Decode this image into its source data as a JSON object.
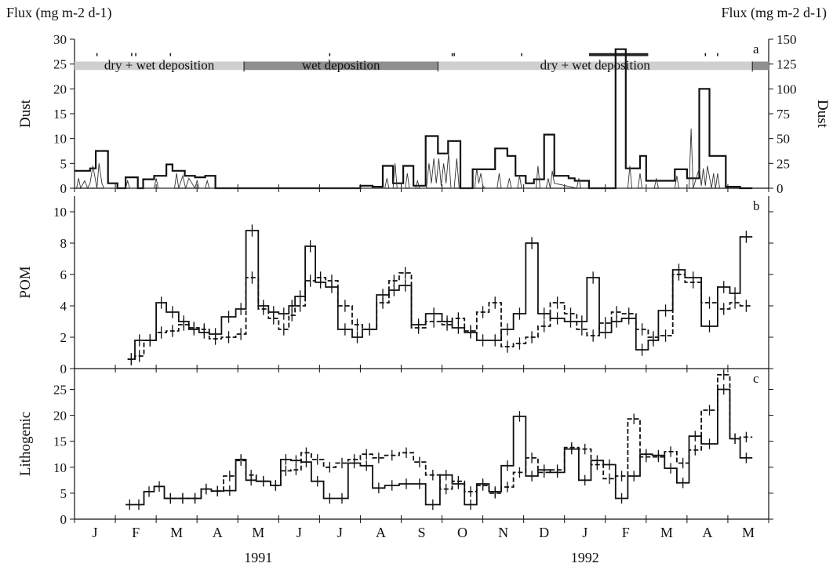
{
  "chart_data": [
    {
      "type": "line",
      "panel": "a",
      "title": "",
      "ylabel": "Dust",
      "ylabel_right": "Dust",
      "top_label_left": "Flux (mg m-2 d-1)",
      "top_label_right": "Flux (mg m-2 d-1)",
      "ylim": [
        0,
        30
      ],
      "yticks": [
        0,
        5,
        10,
        15,
        20,
        25,
        30
      ],
      "ylim_right": [
        0,
        150
      ],
      "yticks_right": [
        0,
        25,
        50,
        75,
        100,
        125,
        150
      ],
      "deposition_bands": [
        {
          "label": "dry + wet deposition",
          "start": 0.0,
          "end": 4.15,
          "shade": "#cfcfcf"
        },
        {
          "label": "wet deposition",
          "start": 4.15,
          "end": 8.9,
          "shade": "#8f8f8f"
        },
        {
          "label": "dry + wet deposition",
          "start": 8.9,
          "end": 16.6,
          "shade": "#cfcfcf"
        },
        {
          "label": "",
          "start": 16.6,
          "end": 17.0,
          "shade": "#8f8f8f"
        }
      ],
      "series": [
        {
          "style": "thick-step",
          "x": [
            0.0,
            0.38,
            0.52,
            0.82,
            1.05,
            1.25,
            1.55,
            1.68,
            1.95,
            2.25,
            2.4,
            2.7,
            2.95,
            3.2,
            3.45,
            3.7,
            3.95,
            4.15,
            7.0,
            7.3,
            7.55,
            7.8,
            8.05,
            8.3,
            8.6,
            8.9,
            9.15,
            9.45,
            9.75,
            10.3,
            10.6,
            10.8,
            11.05,
            11.25,
            11.5,
            11.75,
            12.1,
            12.25,
            12.6,
            12.9,
            13.25,
            13.5,
            13.85,
            14.0,
            14.3,
            14.7,
            15.0,
            15.3,
            15.55,
            15.95,
            16.3
          ],
          "y": [
            3.5,
            4.0,
            7.5,
            1.0,
            0,
            2.2,
            0,
            1.8,
            2.5,
            4.8,
            3.5,
            2.5,
            2.2,
            2.5,
            0,
            0,
            0,
            0,
            0.5,
            0.3,
            4.5,
            1.0,
            4.5,
            0.5,
            10.5,
            7.0,
            9.5,
            0,
            3.8,
            8.0,
            6.5,
            2.5,
            1.0,
            1.8,
            10.8,
            2.5,
            2.0,
            1.5,
            0,
            0,
            28.0,
            4.0,
            6.5,
            1.5,
            1.5,
            3.8,
            2.0,
            20.0,
            6.5,
            0.3,
            0
          ]
        },
        {
          "style": "thin-spiky",
          "x": [
            0.05,
            0.1,
            0.15,
            0.25,
            0.32,
            0.38,
            0.45,
            0.55,
            0.6,
            0.67,
            0.72,
            1.25,
            1.3,
            1.35,
            1.95,
            2.0,
            2.05,
            2.45,
            2.5,
            2.55,
            2.65,
            2.72,
            2.8,
            2.95,
            3.0,
            3.05,
            3.2,
            3.25,
            3.3,
            7.6,
            7.65,
            7.7,
            7.8,
            7.85,
            7.9,
            8.1,
            8.15,
            8.2,
            8.35,
            8.4,
            8.45,
            8.62,
            8.68,
            8.74,
            8.8,
            8.86,
            8.92,
            8.98,
            9.04,
            9.1,
            9.16,
            9.22,
            9.3,
            9.36,
            9.42,
            9.8,
            9.85,
            9.9,
            9.95,
            10.0,
            10.05,
            10.35,
            10.4,
            10.45,
            10.6,
            10.65,
            10.7,
            10.85,
            10.9,
            10.95,
            11.3,
            11.35,
            11.4,
            11.55,
            11.6,
            11.65,
            11.7,
            11.75,
            12.3,
            12.35,
            12.4,
            13.55,
            13.6,
            13.65,
            13.8,
            13.85,
            13.9,
            14.2,
            14.25,
            14.3,
            14.7,
            14.75,
            14.8,
            15.05,
            15.1,
            15.15,
            15.3,
            15.35,
            15.4,
            15.45,
            15.5,
            15.6,
            15.65,
            15.7,
            15.75,
            15.8
          ],
          "y": [
            0,
            2.0,
            0,
            1.5,
            0,
            1.0,
            4.5,
            0,
            5.0,
            1.0,
            0,
            0,
            1.5,
            0,
            0,
            2.0,
            0,
            0,
            3.0,
            0,
            2.5,
            0,
            2.0,
            0,
            1.5,
            0,
            0,
            1.5,
            0,
            0,
            2.0,
            0,
            0,
            5.0,
            0,
            0,
            3.0,
            0,
            0,
            1.5,
            0,
            0,
            5.0,
            1.0,
            6.0,
            1.0,
            6.0,
            0.5,
            5.0,
            1.0,
            7.0,
            0,
            0,
            6.0,
            0,
            0,
            4.0,
            1.0,
            3.0,
            0.5,
            0,
            0,
            3.0,
            0,
            0,
            2.0,
            0,
            0,
            2.5,
            0,
            0,
            4.5,
            0,
            0,
            2.0,
            0,
            3.5,
            1.0,
            0,
            2.0,
            0,
            0,
            4.5,
            0,
            0,
            3.0,
            0,
            0,
            2.0,
            0,
            0,
            2.5,
            0,
            0,
            12.0,
            0,
            4.0,
            0.5,
            4.0,
            0.5,
            4.5,
            0,
            3.0,
            0,
            3.0,
            0
          ]
        }
      ]
    },
    {
      "type": "line",
      "panel": "b",
      "title": "",
      "ylabel": "POM",
      "ylim": [
        0,
        11
      ],
      "yticks": [
        0,
        2,
        4,
        6,
        8,
        10
      ],
      "series": [
        {
          "style": "solid",
          "x": [
            1.3,
            1.48,
            1.7,
            2.0,
            2.25,
            2.55,
            2.8,
            3.05,
            3.3,
            3.6,
            3.95,
            4.2,
            4.5,
            4.75,
            5.0,
            5.25,
            5.4,
            5.65,
            5.9,
            6.15,
            6.45,
            6.8,
            7.05,
            7.4,
            7.7,
            7.95,
            8.25,
            8.6,
            9.0,
            9.25,
            9.55,
            9.85,
            10.15,
            10.45,
            10.75,
            11.05,
            11.35,
            11.65,
            12.0,
            12.3,
            12.55,
            12.85,
            13.15,
            13.4,
            13.75,
            14.05,
            14.3,
            14.65,
            14.95,
            15.35,
            15.75,
            16.05,
            16.3
          ],
          "y": [
            0.6,
            1.8,
            1.8,
            4.2,
            3.6,
            3.0,
            2.5,
            2.3,
            2.2,
            3.3,
            3.8,
            8.8,
            4.0,
            3.6,
            3.5,
            4.0,
            4.6,
            7.8,
            5.5,
            5.2,
            2.5,
            2.0,
            2.5,
            4.7,
            5.0,
            5.3,
            2.8,
            3.5,
            3.0,
            2.6,
            2.3,
            1.8,
            1.8,
            2.5,
            3.5,
            8.0,
            3.5,
            3.2,
            3.0,
            3.0,
            5.8,
            2.3,
            3.0,
            3.2,
            1.2,
            1.8,
            3.7,
            6.3,
            5.8,
            2.7,
            5.2,
            4.8,
            8.4
          ]
        },
        {
          "style": "dashed",
          "x": [
            1.3,
            1.48,
            1.7,
            2.0,
            2.25,
            2.55,
            2.8,
            3.05,
            3.3,
            3.6,
            3.95,
            4.2,
            4.5,
            4.75,
            5.0,
            5.25,
            5.4,
            5.65,
            5.9,
            6.15,
            6.45,
            6.8,
            7.05,
            7.4,
            7.7,
            7.95,
            8.25,
            8.6,
            9.0,
            9.25,
            9.55,
            9.85,
            10.15,
            10.45,
            10.75,
            11.05,
            11.35,
            11.65,
            12.0,
            12.3,
            12.55,
            12.85,
            13.15,
            13.4,
            13.75,
            14.05,
            14.3,
            14.65,
            14.95,
            15.35,
            15.75,
            16.05,
            16.3
          ],
          "y": [
            0.6,
            0.8,
            1.8,
            2.3,
            2.4,
            2.8,
            2.6,
            2.5,
            1.9,
            2.0,
            2.2,
            5.8,
            3.8,
            3.2,
            2.5,
            3.4,
            4.0,
            5.6,
            5.8,
            5.6,
            4.0,
            2.8,
            2.5,
            4.2,
            5.6,
            6.1,
            2.6,
            3.0,
            2.8,
            3.2,
            2.4,
            3.6,
            4.2,
            1.4,
            1.6,
            2.0,
            2.7,
            4.2,
            3.5,
            2.5,
            2.1,
            2.9,
            3.6,
            3.5,
            2.5,
            2.0,
            2.1,
            6.0,
            5.5,
            4.2,
            3.8,
            4.2,
            4.0
          ]
        }
      ]
    },
    {
      "type": "line",
      "panel": "c",
      "title": "",
      "ylabel": "Lithogenic",
      "ylim": [
        0,
        29
      ],
      "yticks": [
        0,
        5,
        10,
        15,
        20,
        25
      ],
      "series": [
        {
          "style": "solid",
          "x": [
            1.25,
            1.45,
            1.7,
            1.95,
            2.2,
            2.5,
            2.8,
            3.1,
            3.35,
            3.65,
            3.95,
            4.2,
            4.45,
            4.8,
            5.05,
            5.3,
            5.55,
            5.8,
            6.1,
            6.4,
            6.7,
            7.0,
            7.3,
            7.6,
            7.95,
            8.3,
            8.6,
            8.95,
            9.25,
            9.55,
            9.85,
            10.15,
            10.45,
            10.75,
            11.05,
            11.35,
            11.65,
            12.0,
            12.35,
            12.65,
            12.95,
            13.25,
            13.55,
            13.85,
            14.15,
            14.45,
            14.75,
            15.05,
            15.35,
            15.75,
            16.05,
            16.3
          ],
          "y": [
            2.8,
            2.8,
            5.3,
            6.3,
            4.0,
            4.0,
            4.0,
            5.8,
            5.4,
            5.5,
            11.5,
            7.5,
            7.3,
            6.5,
            11.5,
            11.3,
            11.0,
            7.3,
            4.0,
            4.0,
            10.8,
            10.3,
            6.0,
            6.5,
            6.8,
            6.8,
            2.8,
            8.5,
            6.8,
            2.8,
            6.8,
            5.3,
            10.3,
            19.8,
            8.3,
            9.5,
            9.0,
            13.5,
            7.5,
            11.3,
            10.5,
            4.0,
            8.3,
            12.5,
            12.3,
            9.8,
            7.0,
            16.0,
            14.5,
            25.0,
            15.5,
            11.8
          ]
        },
        {
          "style": "dashed",
          "x": [
            2.2,
            2.5,
            2.8,
            3.1,
            3.35,
            3.65,
            3.95,
            4.2,
            4.45,
            4.8,
            5.05,
            5.3,
            5.55,
            5.8,
            6.1,
            6.4,
            6.7,
            7.0,
            7.3,
            7.6,
            7.95,
            8.3,
            8.6,
            8.95,
            9.25,
            9.55,
            9.85,
            10.15,
            10.45,
            10.75,
            11.05,
            11.35,
            11.65,
            12.0,
            12.35,
            12.65,
            12.95,
            13.25,
            13.55,
            13.85,
            14.15,
            14.45,
            14.75,
            15.05,
            15.35,
            15.75,
            16.05,
            16.3
          ],
          "y": [
            4.0,
            4.0,
            4.0,
            5.8,
            5.4,
            8.3,
            11.3,
            8.5,
            7.3,
            6.5,
            9.3,
            9.5,
            12.8,
            11.5,
            10.0,
            10.8,
            11.5,
            12.5,
            11.8,
            12.3,
            12.8,
            11.0,
            8.5,
            5.8,
            7.3,
            5.3,
            6.5,
            5.0,
            6.2,
            9.0,
            11.8,
            9.0,
            9.5,
            13.8,
            13.5,
            10.5,
            7.8,
            8.3,
            19.3,
            12.0,
            12.0,
            13.0,
            10.8,
            13.3,
            21.0,
            27.8,
            15.5,
            15.8
          ]
        }
      ]
    }
  ],
  "x_axis": {
    "month_labels": [
      "J",
      "F",
      "M",
      "A",
      "M",
      "J",
      "J",
      "A",
      "S",
      "O",
      "N",
      "D",
      "J",
      "F",
      "M",
      "A",
      "M"
    ],
    "year_labels": [
      {
        "label": "1991",
        "month_index": 4
      },
      {
        "label": "1992",
        "month_index": 12
      }
    ],
    "range": [
      0,
      17
    ]
  },
  "panel_letters": [
    "a",
    "b",
    "c"
  ]
}
